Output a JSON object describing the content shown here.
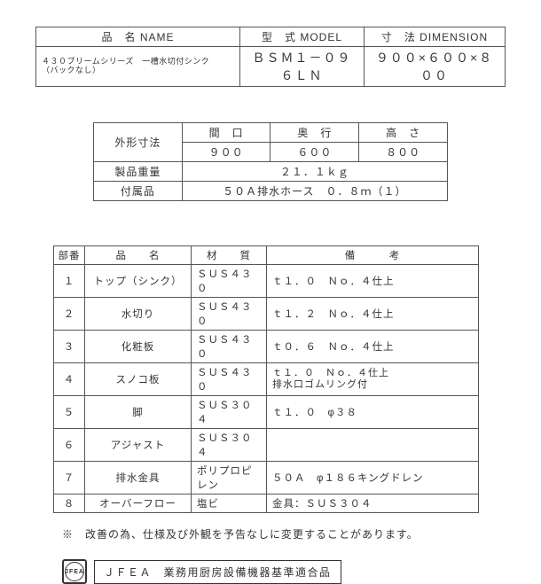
{
  "table1": {
    "headers": {
      "name": "品　名 NAME",
      "model": "型　式 MODEL",
      "dimension": "寸　法 DIMENSION"
    },
    "row": {
      "name_l1": "４３０ブリームシリーズ　一槽水切付シンク",
      "name_l2": "（バックなし）",
      "model": "ＢＳＭ１－０９６ＬＮ",
      "dimension": "９００×６００×８００"
    }
  },
  "table2": {
    "r1": {
      "label": "外形寸法",
      "c1": "間　口",
      "c2": "奥　行",
      "c3": "高　さ"
    },
    "r2": {
      "c1": "９００",
      "c2": "６００",
      "c3": "８００"
    },
    "r3": {
      "label": "製品重量",
      "val": "２１．１ｋｇ"
    },
    "r4": {
      "label": "付属品",
      "val": "５０Ａ排水ホース　０．８ｍ（１）"
    }
  },
  "table3": {
    "headers": {
      "no": "部番",
      "name": "品　　名",
      "material": "材　　質",
      "remarks": "備　　　考"
    },
    "rows": [
      {
        "no": "１",
        "name": "トップ（シンク）",
        "material": "ＳＵＳ４３０",
        "remarks": "ｔ１．０　Ｎｏ．４仕上"
      },
      {
        "no": "２",
        "name": "水切り",
        "material": "ＳＵＳ４３０",
        "remarks": "ｔ１．２　Ｎｏ．４仕上"
      },
      {
        "no": "３",
        "name": "化粧板",
        "material": "ＳＵＳ４３０",
        "remarks": "ｔ０．６　Ｎｏ．４仕上"
      },
      {
        "no": "４",
        "name": "スノコ板",
        "material": "ＳＵＳ４３０",
        "remarks_l1": "ｔ１．０　Ｎｏ．４仕上",
        "remarks_l2": "排水口ゴムリング付"
      },
      {
        "no": "５",
        "name": "脚",
        "material": "ＳＵＳ３０４",
        "remarks": "ｔ１．０　φ３８"
      },
      {
        "no": "６",
        "name": "アジャスト",
        "material": "ＳＵＳ３０４",
        "remarks": ""
      },
      {
        "no": "７",
        "name": "排水金具",
        "material": "ポリプロピレン",
        "remarks": "５０Ａ　φ１８６キングドレン"
      },
      {
        "no": "８",
        "name": "オーバーフロー",
        "material": "塩ビ",
        "remarks": "金具：ＳＵＳ３０４"
      }
    ]
  },
  "note": "※　改善の為、仕様及び外観を予告なしに変更することがあります。",
  "footer": {
    "logo": "JFEA",
    "text": "ＪＦＥＡ　業務用厨房設備機器基準適合品"
  }
}
